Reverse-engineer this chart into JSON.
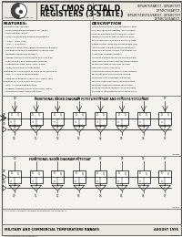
{
  "title_left": "FAST CMOS OCTAL D",
  "title_left2": "REGISTERS (3-STATE)",
  "title_right_lines": [
    "IDT54FCT374AT/CT - IDT54FCT377",
    "IDT74FCT374AT/CT",
    "IDT54FCT/74FCT2374AT/CT - IDT54FCT377",
    "IDT74FCT2374AT/CT"
  ],
  "features_title": "FEATURES:",
  "description_title": "DESCRIPTION",
  "features_lines": [
    "Combinatorial features",
    " • Low input/output leakage of μA (max.)",
    " • CMOS power levels",
    " • True TTL input and output compatibility",
    "   - VOH = 3.3V (typ.)",
    "   - VOL = 0.3V (typ.)",
    " • Nearly-in-spec-able (JEDEC standard) 18 specs",
    " • Product available in Radiation 2 secure and",
    "   Radiation Enhanced versions",
    " • Military product compliant to MIL-STD-883,",
    "   Class B and CECC listed (dual marked)",
    " • Available in: SMF, SOIC, QSO, QSOP,",
    "   TSOP/TSSOP and LCC packages",
    "Features for FCT374/FCT374A/FCT374C/FCT2374:",
    " • Std., A, C and D speed grades",
    " • High-drive outputs (-64mA Ioh, -64mA Ioh)",
    "Features for FCT377/FCT74FCT377:",
    " • Std., A, and D speed grades",
    " • Register outputs (±4mA max, 32mA Sink)",
    " • Reduced system switching noise"
  ],
  "desc_lines": [
    "The FCT374/FCT2374, FCT341 and FCT2341",
    "FCT754/4 are 8-bit registers, built using an",
    "advanced nanosICMOS technology. These",
    "registers consist of eight D-type flip-flops",
    "with a common clock and a master 3-state",
    "output control. When the output enable (OE)",
    "input is LOW, the eight outputs are active.",
    "When the OE input is HIGH, the outputs are",
    "in the high-impedance state.",
    "Flip-flops meeting the set-up and hold time",
    "requirements of the D outputs are presented",
    "to the Q outputs on the LOW-to-HIGH",
    "transition of the clock input.",
    "The FCT2374 and FCT2341 is manufactured",
    "for output drive and inductive loading",
    "conditions. This allows ground bounce",
    "removal undershoot and controlled output",
    "fall times reducing the need for external",
    "series terminating resistors. FCT2xx4 parts",
    "are plug-in replacements for FCT4xx4 parts."
  ],
  "block_title1": "FUNCTIONAL BLOCK DIAGRAM FCT574/FCT374AT AND FCT2374/FCT2374AT",
  "block_title2": "FUNCTIONAL BLOCK DIAGRAM FCT574AT",
  "footer_left": "MILITARY AND COMMERCIAL TEMPERATURE RANGES",
  "footer_right": "AUGUST 1995",
  "footer_center": "1.1.1",
  "footer_bottom_left": "© 1995 Integrated Device Technology, Inc.",
  "footer_bottom_right": "005-00101",
  "page_bg": "#f5f3ef",
  "border_color": "#555555",
  "text_color": "#111111",
  "header_bg": "#ebe8e2",
  "block_bg": "#f5f2ee"
}
